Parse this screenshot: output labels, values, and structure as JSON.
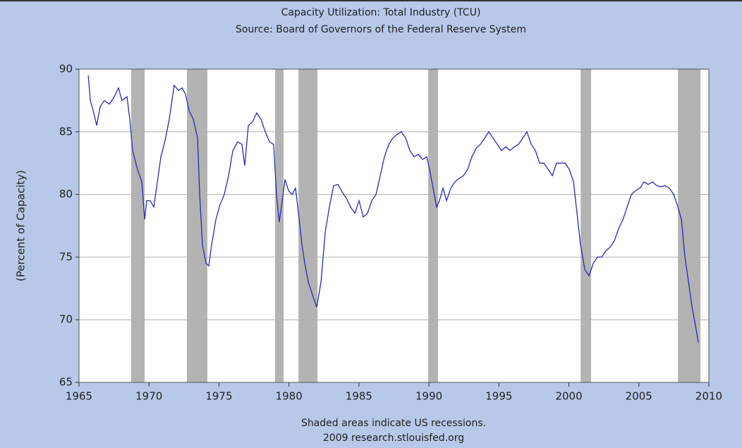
{
  "chart_data": {
    "type": "line",
    "title": "Capacity Utilization: Total Industry (TCU)",
    "subtitle": "Source: Board of Governors of the Federal Reserve System",
    "ylabel": "(Percent of Capacity)",
    "notes": [
      "Shaded areas indicate US recessions.",
      "2009 research.stlouisfed.org"
    ],
    "xlim": [
      1965,
      2010
    ],
    "xticks": [
      1965,
      1970,
      1975,
      1980,
      1985,
      1990,
      1995,
      2000,
      2005,
      2010
    ],
    "ylim": [
      65,
      90
    ],
    "yticks": [
      65,
      70,
      75,
      80,
      85,
      90
    ],
    "grid": true,
    "recessions": [
      [
        1968.73,
        1969.69
      ],
      [
        1972.71,
        1974.17
      ],
      [
        1979.01,
        1979.62
      ],
      [
        1980.68,
        1982.04
      ],
      [
        1989.95,
        1990.65
      ],
      [
        2000.84,
        2001.59
      ],
      [
        2007.79,
        2009.4
      ]
    ],
    "recession_color": "#b3b3b3",
    "series": [
      {
        "name": "TCU",
        "color": "#2a2ab8",
        "x": [
          1965.66,
          1965.81,
          1966.06,
          1966.26,
          1966.51,
          1966.81,
          1967.17,
          1967.52,
          1967.82,
          1968.07,
          1968.43,
          1968.63,
          1968.83,
          1969.18,
          1969.49,
          1969.69,
          1969.84,
          1970.09,
          1970.34,
          1970.54,
          1970.85,
          1971.15,
          1971.45,
          1971.8,
          1972.11,
          1972.36,
          1972.61,
          1972.86,
          1973.17,
          1973.47,
          1973.62,
          1973.82,
          1974.07,
          1974.27,
          1974.48,
          1974.78,
          1975.08,
          1975.38,
          1975.69,
          1975.99,
          1976.34,
          1976.64,
          1976.84,
          1977.1,
          1977.4,
          1977.7,
          1978.0,
          1978.31,
          1978.61,
          1978.91,
          1979.11,
          1979.31,
          1979.52,
          1979.72,
          1979.97,
          1980.22,
          1980.47,
          1980.73,
          1980.93,
          1981.13,
          1981.38,
          1981.68,
          1981.98,
          1982.29,
          1982.59,
          1982.89,
          1983.19,
          1983.5,
          1983.8,
          1984.1,
          1984.4,
          1984.71,
          1985.01,
          1985.31,
          1985.61,
          1985.92,
          1986.22,
          1986.52,
          1986.82,
          1987.13,
          1987.43,
          1987.73,
          1988.03,
          1988.34,
          1988.64,
          1988.94,
          1989.24,
          1989.55,
          1989.85,
          1990.05,
          1990.3,
          1990.55,
          1990.75,
          1991.01,
          1991.26,
          1991.56,
          1991.86,
          1992.17,
          1992.47,
          1992.77,
          1993.07,
          1993.38,
          1993.68,
          1993.98,
          1994.28,
          1994.58,
          1994.89,
          1995.19,
          1995.49,
          1995.79,
          1996.1,
          1996.4,
          1996.7,
          1997.0,
          1997.31,
          1997.61,
          1997.91,
          1998.21,
          1998.52,
          1998.82,
          1999.12,
          1999.42,
          1999.73,
          2000.03,
          2000.33,
          2000.53,
          2000.83,
          2001.14,
          2001.44,
          2001.74,
          2002.04,
          2002.35,
          2002.65,
          2002.95,
          2003.25,
          2003.56,
          2003.86,
          2004.16,
          2004.46,
          2004.77,
          2005.07,
          2005.37,
          2005.67,
          2005.98,
          2006.28,
          2006.58,
          2006.88,
          2007.18,
          2007.49,
          2007.79,
          2008.04,
          2008.29,
          2008.55,
          2008.8,
          2009.05,
          2009.25
        ],
        "values": [
          89.5,
          87.5,
          86.5,
          85.5,
          87,
          87.5,
          87.2,
          87.8,
          88.5,
          87.5,
          87.8,
          86,
          83.5,
          82,
          81,
          78,
          79.5,
          79.5,
          79,
          80.5,
          83,
          84.3,
          86,
          88.7,
          88.3,
          88.5,
          88,
          86.7,
          86,
          84.5,
          80,
          76,
          74.5,
          74.3,
          76,
          78,
          79.2,
          80,
          81.5,
          83.5,
          84.2,
          84,
          82.3,
          85.5,
          85.8,
          86.5,
          86,
          85,
          84.2,
          84,
          80,
          77.8,
          79.5,
          81.2,
          80.3,
          80,
          80.5,
          78,
          76,
          74.5,
          73,
          72,
          71,
          73,
          77,
          79,
          80.7,
          80.8,
          80.2,
          79.7,
          79,
          78.5,
          79.5,
          78.2,
          78.5,
          79.5,
          80,
          81.5,
          83,
          84,
          84.5,
          84.8,
          85,
          84.5,
          83.5,
          83,
          83.2,
          82.8,
          83,
          82,
          80.5,
          79,
          79.5,
          80.5,
          79.5,
          80.5,
          81,
          81.3,
          81.5,
          82,
          83,
          83.7,
          84,
          84.5,
          85,
          84.5,
          84,
          83.5,
          83.8,
          83.5,
          83.8,
          84,
          84.5,
          85,
          84,
          83.5,
          82.5,
          82.5,
          82,
          81.5,
          82.5,
          82.5,
          82.5,
          82,
          81,
          79,
          76,
          74,
          73.5,
          74.5,
          75,
          75,
          75.5,
          75.8,
          76.3,
          77.3,
          78,
          79,
          80,
          80.3,
          80.5,
          81,
          80.8,
          81,
          80.7,
          80.6,
          80.7,
          80.5,
          80,
          79,
          78,
          75,
          73,
          71,
          69.5,
          68.2
        ]
      }
    ]
  }
}
